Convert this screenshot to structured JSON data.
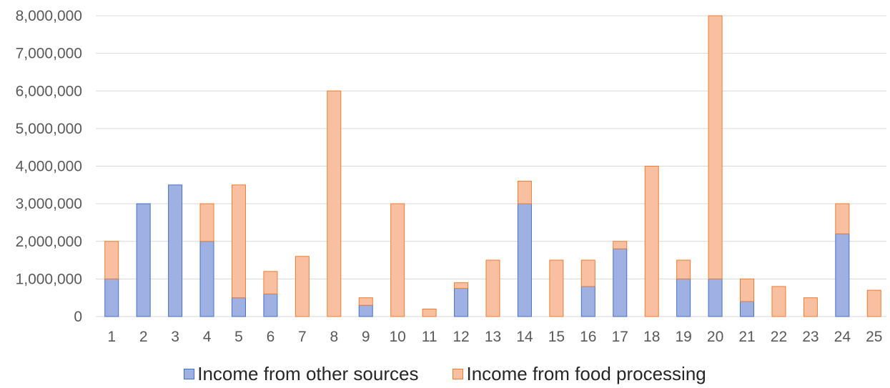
{
  "chart_data": {
    "type": "bar",
    "stacked": true,
    "categories": [
      "1",
      "2",
      "3",
      "4",
      "5",
      "6",
      "7",
      "8",
      "9",
      "10",
      "11",
      "12",
      "13",
      "14",
      "15",
      "16",
      "17",
      "18",
      "19",
      "20",
      "21",
      "22",
      "23",
      "24",
      "25"
    ],
    "series": [
      {
        "name": "Income from other sources",
        "color": "#9fb0e3",
        "border": "#4472c4",
        "values": [
          1000000,
          3000000,
          3500000,
          2000000,
          500000,
          600000,
          0,
          0,
          300000,
          0,
          0,
          750000,
          0,
          3000000,
          0,
          800000,
          1800000,
          0,
          1000000,
          1000000,
          400000,
          0,
          0,
          2200000,
          0
        ]
      },
      {
        "name": "Income from food processing",
        "color": "#f8c0a1",
        "border": "#ed7d31",
        "values": [
          1000000,
          0,
          0,
          1000000,
          3000000,
          600000,
          1600000,
          6000000,
          200000,
          3000000,
          200000,
          150000,
          1500000,
          600000,
          1500000,
          700000,
          200000,
          4000000,
          500000,
          7000000,
          600000,
          800000,
          500000,
          800000,
          700000
        ]
      }
    ],
    "ylim": [
      0,
      8000000
    ],
    "yticks": [
      "0",
      "1,000,000",
      "2,000,000",
      "3,000,000",
      "4,000,000",
      "5,000,000",
      "6,000,000",
      "7,000,000",
      "8,000,000"
    ],
    "grid": true,
    "legend_position": "bottom"
  }
}
